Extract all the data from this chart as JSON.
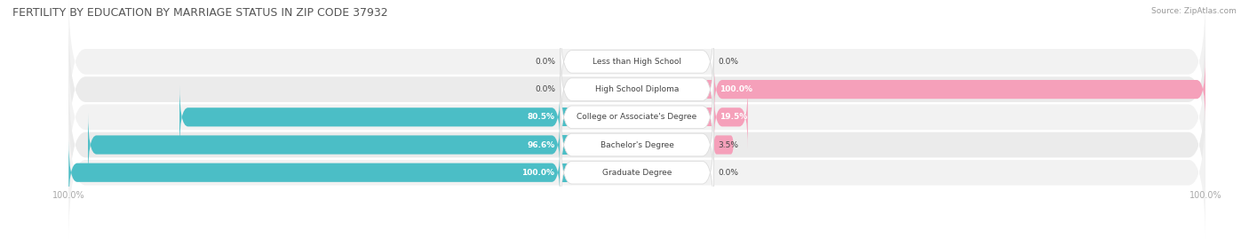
{
  "title": "FERTILITY BY EDUCATION BY MARRIAGE STATUS IN ZIP CODE 37932",
  "source": "Source: ZipAtlas.com",
  "categories": [
    "Less than High School",
    "High School Diploma",
    "College or Associate's Degree",
    "Bachelor's Degree",
    "Graduate Degree"
  ],
  "married": [
    0.0,
    0.0,
    80.5,
    96.6,
    100.0
  ],
  "unmarried": [
    0.0,
    100.0,
    19.5,
    3.5,
    0.0
  ],
  "married_color": "#4BBEC6",
  "unmarried_color": "#F5A0BA",
  "row_bg_even": "#F2F2F2",
  "row_bg_odd": "#EBEBEB",
  "title_color": "#555555",
  "text_color": "#444444",
  "source_color": "#999999",
  "axis_label_color": "#AAAAAA",
  "figsize": [
    14.06,
    2.69
  ],
  "dpi": 100
}
